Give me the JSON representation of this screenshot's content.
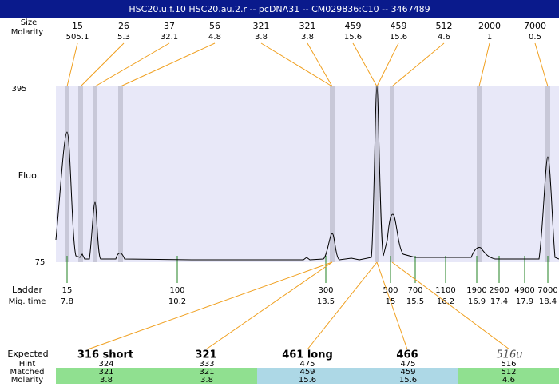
{
  "header": {
    "title": "HSC20.u.f.10 HSC20.au.2.r -- pcDNA31 -- CM029836:C10 -- 3467489"
  },
  "peaks": {
    "size_label": "Size",
    "molarity_label": "Molarity",
    "items": [
      {
        "size": "15",
        "molarity": "505.1"
      },
      {
        "size": "26",
        "molarity": "5.3"
      },
      {
        "size": "37",
        "molarity": "32.1"
      },
      {
        "size": "56",
        "molarity": "4.8"
      },
      {
        "size": "321",
        "molarity": "3.8"
      },
      {
        "size": "321",
        "molarity": "3.8"
      },
      {
        "size": "459",
        "molarity": "15.6"
      },
      {
        "size": "459",
        "molarity": "15.6"
      },
      {
        "size": "512",
        "molarity": "4.6"
      },
      {
        "size": "2000",
        "molarity": "1"
      },
      {
        "size": "7000",
        "molarity": "0.5"
      }
    ]
  },
  "y_axis": {
    "label": "Fluo.",
    "top": "395",
    "bottom": "75"
  },
  "ladder": {
    "label": "Ladder",
    "time_label": "Mig. time",
    "items": [
      {
        "size": "15",
        "time": "7.8"
      },
      {
        "size": "100",
        "time": "10.2"
      },
      {
        "size": "300",
        "time": "13.5"
      },
      {
        "size": "500",
        "time": "15"
      },
      {
        "size": "700",
        "time": "15.5"
      },
      {
        "size": "1100",
        "time": "16.2"
      },
      {
        "size": "1900",
        "time": "16.9"
      },
      {
        "size": "2900",
        "time": "17.4"
      },
      {
        "size": "4900",
        "time": "17.9"
      },
      {
        "size": "7000",
        "time": "18.4"
      }
    ]
  },
  "expected": {
    "label": "Expected",
    "row_labels": [
      "Hint",
      "Matched",
      "Molarity"
    ],
    "items": [
      {
        "name": "316 short",
        "hint": "324",
        "matched": "321",
        "molarity": "3.8"
      },
      {
        "name": "321",
        "hint": "333",
        "matched": "321",
        "molarity": "3.8"
      },
      {
        "name": "461 long",
        "hint": "475",
        "matched": "459",
        "molarity": "15.6"
      },
      {
        "name": "466",
        "hint": "475",
        "matched": "459",
        "molarity": "15.6"
      },
      {
        "name": "516u",
        "hint": "516",
        "matched": "512",
        "molarity": "4.6"
      }
    ]
  }
}
